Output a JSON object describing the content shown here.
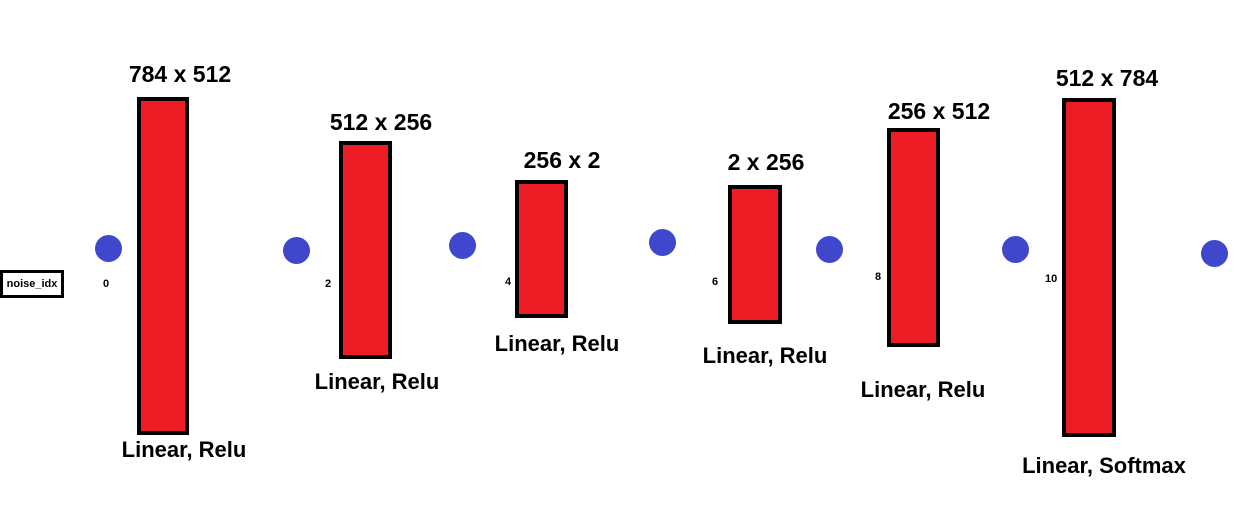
{
  "input_label": "noise_idx",
  "layers": [
    {
      "dims": "784 x 512",
      "activation": "Linear, Relu"
    },
    {
      "dims": "512 x 256",
      "activation": "Linear, Relu"
    },
    {
      "dims": "256 x 2",
      "activation": "Linear, Relu"
    },
    {
      "dims": "2 x 256",
      "activation": "Linear, Relu"
    },
    {
      "dims": "256 x 512",
      "activation": "Linear, Relu"
    },
    {
      "dims": "512 x 784",
      "activation": "Linear, Softmax"
    }
  ],
  "indices": [
    "0",
    "2",
    "4",
    "6",
    "8",
    "10"
  ],
  "colors": {
    "layer_fill": "#ee1c24",
    "node_fill": "#3f48cc",
    "border": "#000000"
  }
}
